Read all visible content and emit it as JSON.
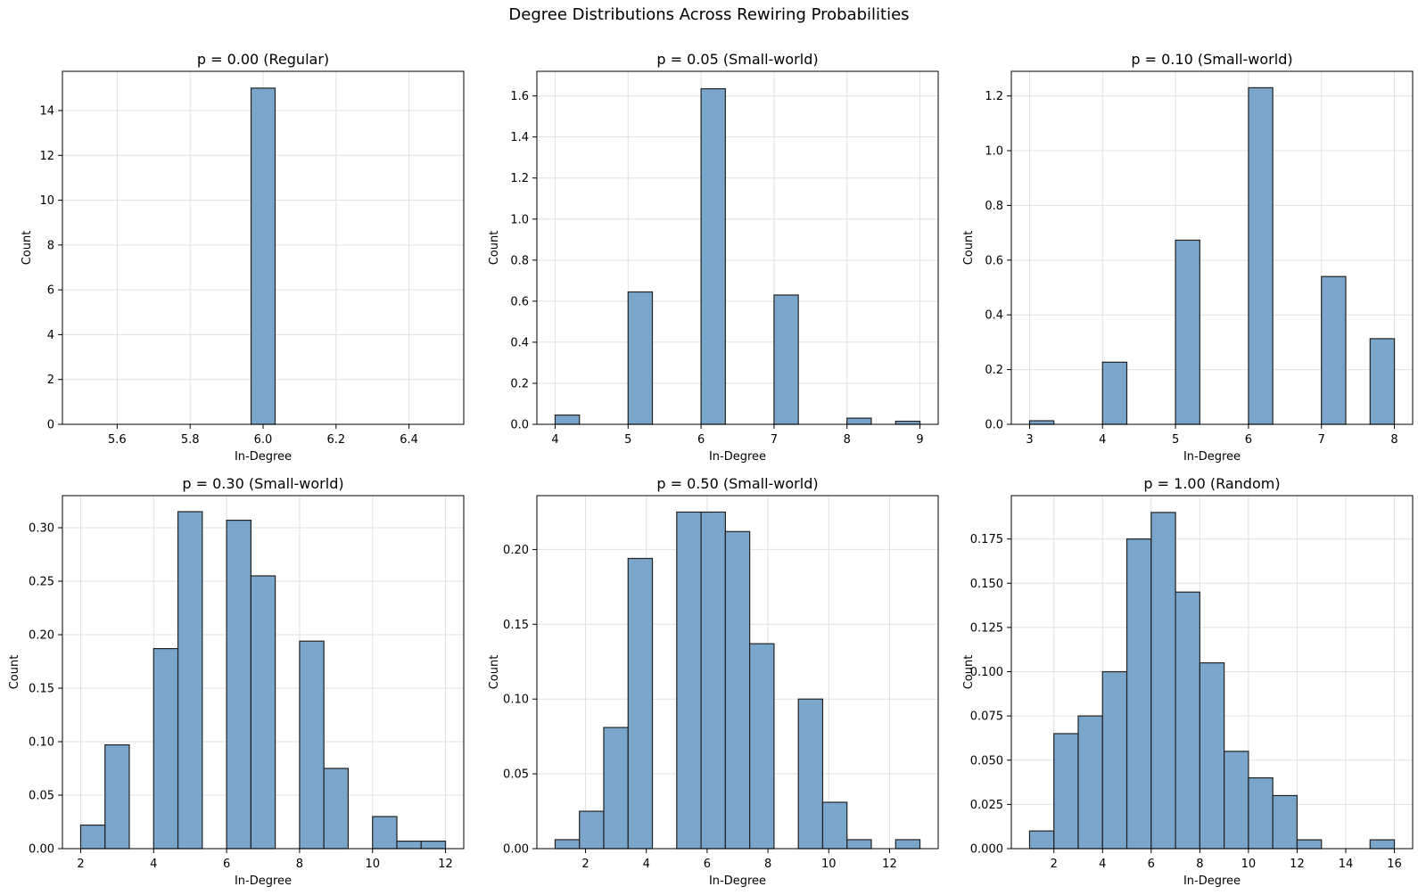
{
  "figure": {
    "title": "Degree Distributions Across Rewiring Probabilities",
    "bar_color": "#7ba6cb",
    "bar_edge_color": "#222222",
    "grid_color": "#e0e0e0"
  },
  "chart_data": [
    {
      "type": "bar",
      "title": "p = 0.00 (Regular)",
      "xlabel": "In-Degree",
      "ylabel": "Count",
      "grid": true,
      "xlim": [
        5.45,
        6.55
      ],
      "ylim": [
        0,
        15.75
      ],
      "xticks": [
        5.6,
        5.8,
        6.0,
        6.2,
        6.4
      ],
      "yticks": [
        0,
        2,
        4,
        6,
        8,
        10,
        12,
        14
      ],
      "bins": [
        [
          5.967,
          6.033,
          15
        ]
      ]
    },
    {
      "type": "bar",
      "title": "p = 0.05 (Small-world)",
      "xlabel": "In-Degree",
      "ylabel": "Count",
      "grid": true,
      "xlim": [
        3.75,
        9.25
      ],
      "ylim": [
        0,
        1.72
      ],
      "xticks": [
        4,
        5,
        6,
        7,
        8,
        9
      ],
      "yticks": [
        0.0,
        0.2,
        0.4,
        0.6,
        0.8,
        1.0,
        1.2,
        1.4,
        1.6
      ],
      "bins": [
        [
          4.0,
          4.333,
          0.045
        ],
        [
          5.0,
          5.333,
          0.645
        ],
        [
          6.0,
          6.333,
          1.635
        ],
        [
          7.0,
          7.333,
          0.63
        ],
        [
          8.0,
          8.333,
          0.03
        ],
        [
          8.667,
          9.0,
          0.015
        ]
      ]
    },
    {
      "type": "bar",
      "title": "p = 0.10 (Small-world)",
      "xlabel": "In-Degree",
      "ylabel": "Count",
      "grid": true,
      "xlim": [
        2.75,
        8.25
      ],
      "ylim": [
        0,
        1.29
      ],
      "xticks": [
        3,
        4,
        5,
        6,
        7,
        8
      ],
      "yticks": [
        0.0,
        0.2,
        0.4,
        0.6,
        0.8,
        1.0,
        1.2
      ],
      "bins": [
        [
          3.0,
          3.333,
          0.013
        ],
        [
          4.0,
          4.333,
          0.227
        ],
        [
          5.0,
          5.333,
          0.673
        ],
        [
          6.0,
          6.333,
          1.23
        ],
        [
          7.0,
          7.333,
          0.54
        ],
        [
          7.667,
          8.0,
          0.313
        ]
      ]
    },
    {
      "type": "bar",
      "title": "p = 0.30 (Small-world)",
      "xlabel": "In-Degree",
      "ylabel": "Count",
      "grid": true,
      "xlim": [
        1.5,
        12.5
      ],
      "ylim": [
        0,
        0.33
      ],
      "xticks": [
        2,
        4,
        6,
        8,
        10,
        12
      ],
      "yticks": [
        0.0,
        0.05,
        0.1,
        0.15,
        0.2,
        0.25,
        0.3
      ],
      "ytick_labels": [
        "0.00",
        "0.05",
        "0.10",
        "0.15",
        "0.20",
        "0.25",
        "0.30"
      ],
      "bins": [
        [
          2.0,
          2.667,
          0.022
        ],
        [
          2.667,
          3.333,
          0.097
        ],
        [
          4.0,
          4.667,
          0.187
        ],
        [
          4.667,
          5.333,
          0.315
        ],
        [
          6.0,
          6.667,
          0.307
        ],
        [
          6.667,
          7.333,
          0.255
        ],
        [
          8.0,
          8.667,
          0.194
        ],
        [
          8.667,
          9.333,
          0.075
        ],
        [
          10.0,
          10.667,
          0.03
        ],
        [
          10.667,
          11.333,
          0.007
        ],
        [
          11.333,
          12.0,
          0.007
        ]
      ]
    },
    {
      "type": "bar",
      "title": "p = 0.50 (Small-world)",
      "xlabel": "In-Degree",
      "ylabel": "Count",
      "grid": true,
      "xlim": [
        0.4,
        13.6
      ],
      "ylim": [
        0,
        0.236
      ],
      "xticks": [
        2,
        4,
        6,
        8,
        10,
        12
      ],
      "yticks": [
        0.0,
        0.05,
        0.1,
        0.15,
        0.2
      ],
      "ytick_labels": [
        "0.00",
        "0.05",
        "0.10",
        "0.15",
        "0.20"
      ],
      "bins": [
        [
          1.0,
          1.8,
          0.006
        ],
        [
          1.8,
          2.6,
          0.025
        ],
        [
          2.6,
          3.4,
          0.081
        ],
        [
          3.4,
          4.2,
          0.194
        ],
        [
          5.0,
          5.8,
          0.225
        ],
        [
          5.8,
          6.6,
          0.225
        ],
        [
          6.6,
          7.4,
          0.212
        ],
        [
          7.4,
          8.2,
          0.137
        ],
        [
          9.0,
          9.8,
          0.1
        ],
        [
          9.8,
          10.6,
          0.031
        ],
        [
          10.6,
          11.4,
          0.006
        ],
        [
          12.2,
          13.0,
          0.006
        ]
      ]
    },
    {
      "type": "bar",
      "title": "p = 1.00 (Random)",
      "xlabel": "In-Degree",
      "ylabel": "Count",
      "grid": true,
      "xlim": [
        0.25,
        16.75
      ],
      "ylim": [
        0,
        0.1995
      ],
      "xticks": [
        2,
        4,
        6,
        8,
        10,
        12,
        14,
        16
      ],
      "yticks": [
        0.0,
        0.025,
        0.05,
        0.075,
        0.1,
        0.125,
        0.15,
        0.175
      ],
      "ytick_labels": [
        "0.000",
        "0.025",
        "0.050",
        "0.075",
        "0.100",
        "0.125",
        "0.150",
        "0.175"
      ],
      "bins": [
        [
          1,
          2,
          0.01
        ],
        [
          2,
          3,
          0.065
        ],
        [
          3,
          4,
          0.075
        ],
        [
          4,
          5,
          0.1
        ],
        [
          5,
          6,
          0.175
        ],
        [
          6,
          7,
          0.19
        ],
        [
          7,
          8,
          0.145
        ],
        [
          8,
          9,
          0.105
        ],
        [
          9,
          10,
          0.055
        ],
        [
          10,
          11,
          0.04
        ],
        [
          11,
          12,
          0.03
        ],
        [
          12,
          13,
          0.005
        ],
        [
          15,
          16,
          0.005
        ]
      ]
    }
  ]
}
